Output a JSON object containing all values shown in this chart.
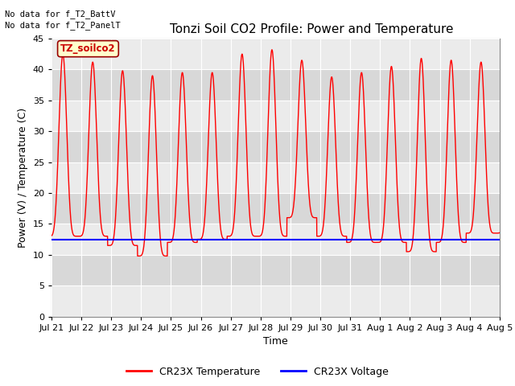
{
  "title": "Tonzi Soil CO2 Profile: Power and Temperature",
  "ylabel": "Power (V) / Temperature (C)",
  "xlabel": "Time",
  "ylim": [
    0,
    45
  ],
  "yticks": [
    0,
    5,
    10,
    15,
    20,
    25,
    30,
    35,
    40,
    45
  ],
  "n_days": 15,
  "date_labels": [
    "Jul 21",
    "Jul 22",
    "Jul 23",
    "Jul 24",
    "Jul 25",
    "Jul 26",
    "Jul 27",
    "Jul 28",
    "Jul 29",
    "Jul 30",
    "Jul 31",
    "Aug 1",
    "Aug 2",
    "Aug 3",
    "Aug 4",
    "Aug 5"
  ],
  "temp_color": "#ff0000",
  "voltage_color": "#0000ff",
  "voltage_value": 12.4,
  "top_text1": "No data for f_T2_BattV",
  "top_text2": "No data for f_T2_PanelT",
  "legend_label1": "CR23X Temperature",
  "legend_label2": "CR23X Voltage",
  "box_label": "TZ_soilco2",
  "box_facecolor": "#ffffcc",
  "box_edgecolor": "#990000",
  "box_textcolor": "#cc0000",
  "bg_light": "#ebebeb",
  "bg_dark": "#d8d8d8",
  "title_fontsize": 11,
  "axis_label_fontsize": 9,
  "tick_fontsize": 8,
  "daily_peaks": [
    42.5,
    41.2,
    39.8,
    39.0,
    39.5,
    39.5,
    42.5,
    43.2,
    41.5,
    38.8,
    39.5,
    40.5,
    41.8,
    41.5,
    41.2
  ],
  "daily_mins": [
    13.0,
    13.0,
    11.5,
    9.8,
    12.0,
    12.5,
    13.0,
    13.0,
    16.0,
    13.0,
    12.0,
    12.0,
    10.5,
    12.0,
    13.5
  ]
}
